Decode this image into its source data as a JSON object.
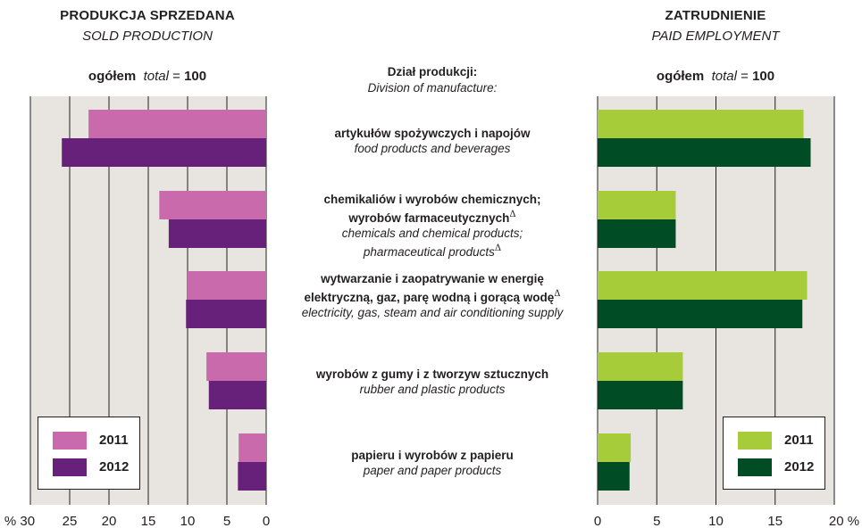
{
  "left_title": "PRODUKCJA SPRZEDANA",
  "left_subtitle": "SOLD PRODUCTION",
  "right_title": "ZATRUDNIENIE",
  "right_subtitle": "PAID EMPLOYMENT",
  "total_bold": "ogółem",
  "total_italic": "total",
  "total_value": "= 100",
  "total_number": "100",
  "center_header_pl": "Dział produkcji:",
  "center_header_en": "Division of manufacture:",
  "categories": [
    {
      "pl": "artykułów spożywczych i napojów",
      "en": "food products and beverages"
    },
    {
      "pl_1": "chemikaliów i wyrobów chemicznych;",
      "pl_2": "wyrobów farmaceutycznych",
      "pl_sup": "Δ",
      "en_1": "chemicals and chemical products;",
      "en_2": "pharmaceutical products",
      "en_sup": "Δ"
    },
    {
      "pl_1": "wytwarzanie i zaopatrywanie w energię",
      "pl_2": "elektryczną, gaz, parę wodną i gorącą wodę",
      "pl_sup": "Δ",
      "en": "electricity, gas, steam and air conditioning supply"
    },
    {
      "pl": "wyrobów z gumy i z tworzyw sztucznych",
      "en": "rubber and plastic products"
    },
    {
      "pl": "papieru i wyrobów z papieru",
      "en": "paper and paper products"
    }
  ],
  "left_legend": {
    "a": "2011",
    "b": "2012"
  },
  "right_legend": {
    "a": "2011",
    "b": "2012"
  },
  "left_ticks": [
    "% 30",
    "25",
    "20",
    "15",
    "10",
    "5",
    "0"
  ],
  "right_ticks": [
    "0",
    "5",
    "10",
    "15",
    "20 %"
  ],
  "colors": {
    "left_2011": "#c96aad",
    "left_2012": "#68217a",
    "right_2011": "#a6cc3a",
    "right_2012": "#004d25",
    "panel_bg": "#e8e5e0",
    "grid": "#231f20"
  },
  "chart_data": [
    {
      "type": "bar",
      "orientation": "horizontal",
      "title": "PRODUKCJA SPRZEDANA / SOLD PRODUCTION",
      "categories": [
        "food products and beverages",
        "chemicals and chemical products; pharmaceutical products",
        "electricity, gas, steam and air conditioning supply",
        "rubber and plastic products",
        "paper and paper products"
      ],
      "series": [
        {
          "name": "2011",
          "values": [
            22.6,
            13.6,
            10.0,
            7.6,
            3.5
          ]
        },
        {
          "name": "2012",
          "values": [
            26.0,
            12.4,
            10.2,
            7.3,
            3.6
          ]
        }
      ],
      "xlim": [
        0,
        30
      ],
      "direction": "right-to-left",
      "grid": true,
      "legend": "bottom-left"
    },
    {
      "type": "bar",
      "orientation": "horizontal",
      "title": "ZATRUDNIENIE / PAID EMPLOYMENT",
      "categories": [
        "food products and beverages",
        "chemicals and chemical products; pharmaceutical products",
        "electricity, gas, steam and air conditioning supply",
        "rubber and plastic products",
        "paper and paper products"
      ],
      "series": [
        {
          "name": "2011",
          "values": [
            17.4,
            6.6,
            17.7,
            7.2,
            2.8
          ]
        },
        {
          "name": "2012",
          "values": [
            18.0,
            6.6,
            17.3,
            7.2,
            2.7
          ]
        }
      ],
      "xlim": [
        0,
        20
      ],
      "direction": "left-to-right",
      "grid": true,
      "legend": "bottom-right"
    }
  ]
}
